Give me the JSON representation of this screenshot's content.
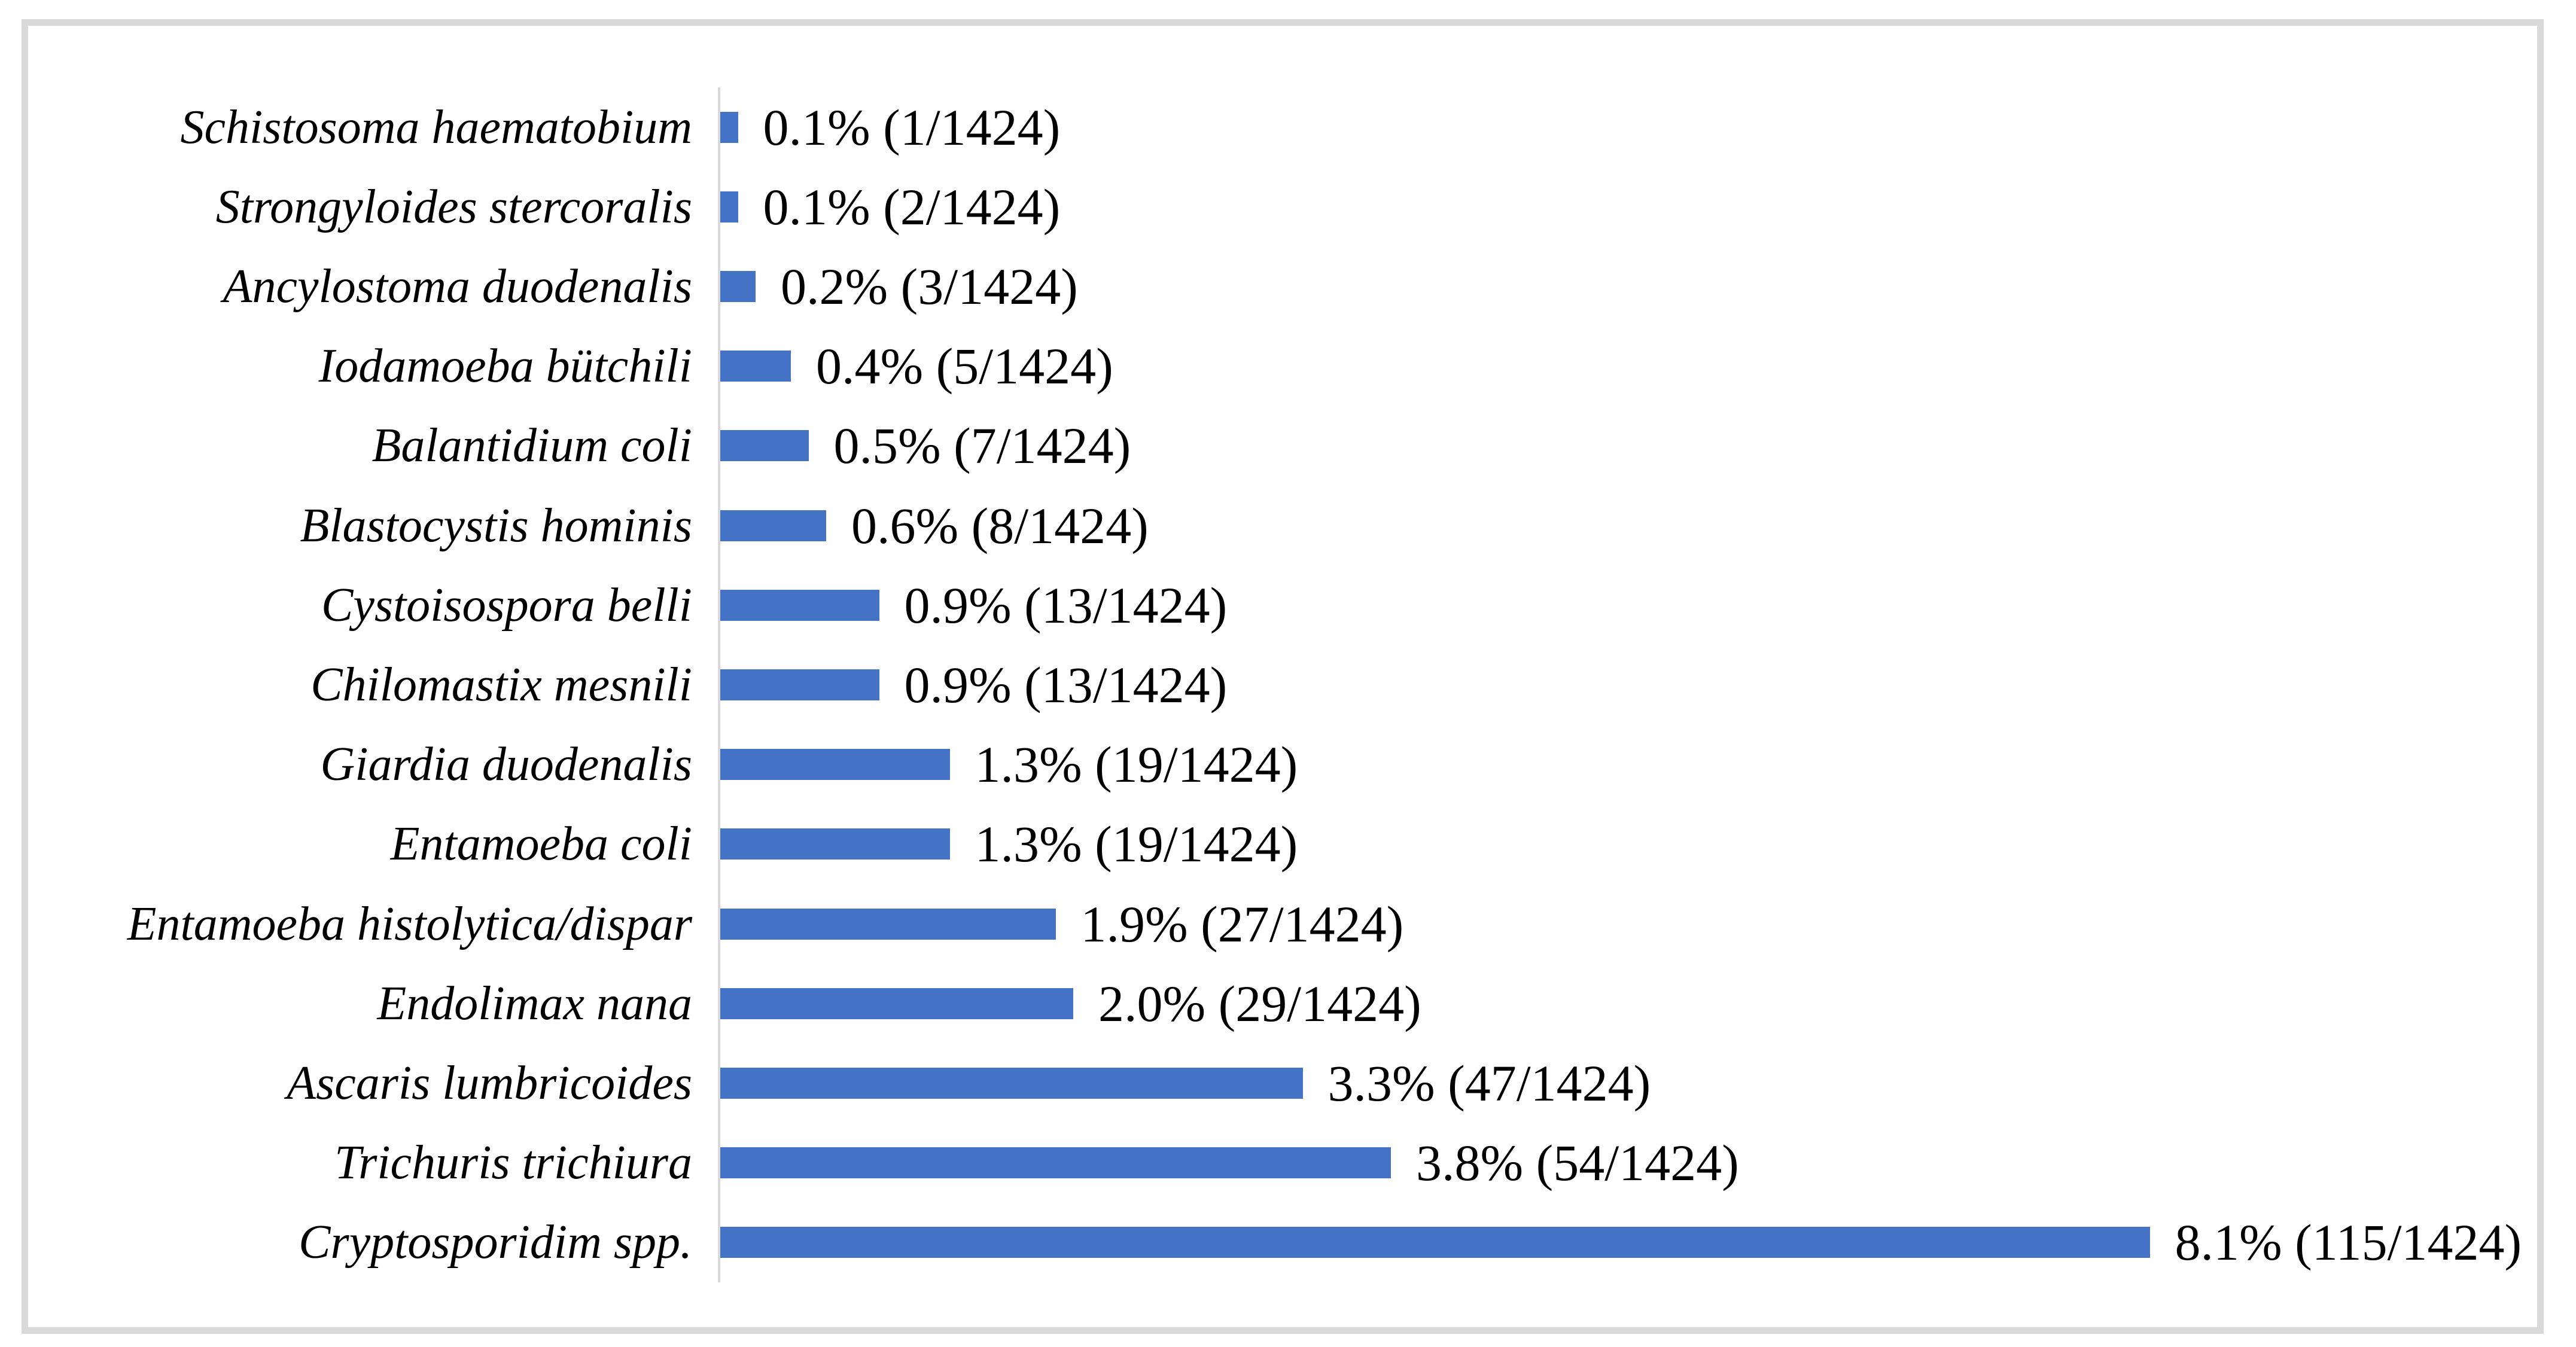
{
  "chart_data": {
    "type": "bar",
    "orientation": "horizontal",
    "title": "",
    "xlabel": "",
    "ylabel": "",
    "grid": false,
    "legend": false,
    "xlim": [
      0,
      9
    ],
    "bar_color": "#4472C4",
    "axis_line_color": "#D9D9D9",
    "frame_color": "#D9D9D9",
    "denominator": 1424,
    "categories": [
      "Schistosoma haematobium",
      "Strongyloides stercoralis",
      "Ancylostoma duodenalis",
      "Iodamoeba bütchili",
      "Balantidium coli",
      "Blastocystis hominis",
      "Cystoisospora belli",
      "Chilomastix mesnili",
      "Giardia duodenalis",
      "Entamoeba coli",
      "Entamoeba histolytica/dispar",
      "Endolimax nana",
      "Ascaris lumbricoides",
      "Trichuris trichiura",
      "Cryptosporidim spp."
    ],
    "values": [
      0.1,
      0.1,
      0.2,
      0.4,
      0.5,
      0.6,
      0.9,
      0.9,
      1.3,
      1.3,
      1.9,
      2.0,
      3.3,
      3.8,
      8.1
    ],
    "counts": [
      1,
      2,
      3,
      5,
      7,
      8,
      13,
      13,
      19,
      19,
      27,
      29,
      47,
      54,
      115
    ],
    "value_labels": [
      "0.1% (1/1424)",
      "0.1% (2/1424)",
      "0.2% (3/1424)",
      "0.4% (5/1424)",
      "0.5% (7/1424)",
      "0.6% (8/1424)",
      "0.9% (13/1424)",
      "0.9% (13/1424)",
      "1.3% (19/1424)",
      "1.3% (19/1424)",
      "1.9% (27/1424)",
      "2.0% (29/1424)",
      "3.3% (47/1424)",
      "3.8% (54/1424)",
      "8.1% (115/1424)"
    ]
  }
}
